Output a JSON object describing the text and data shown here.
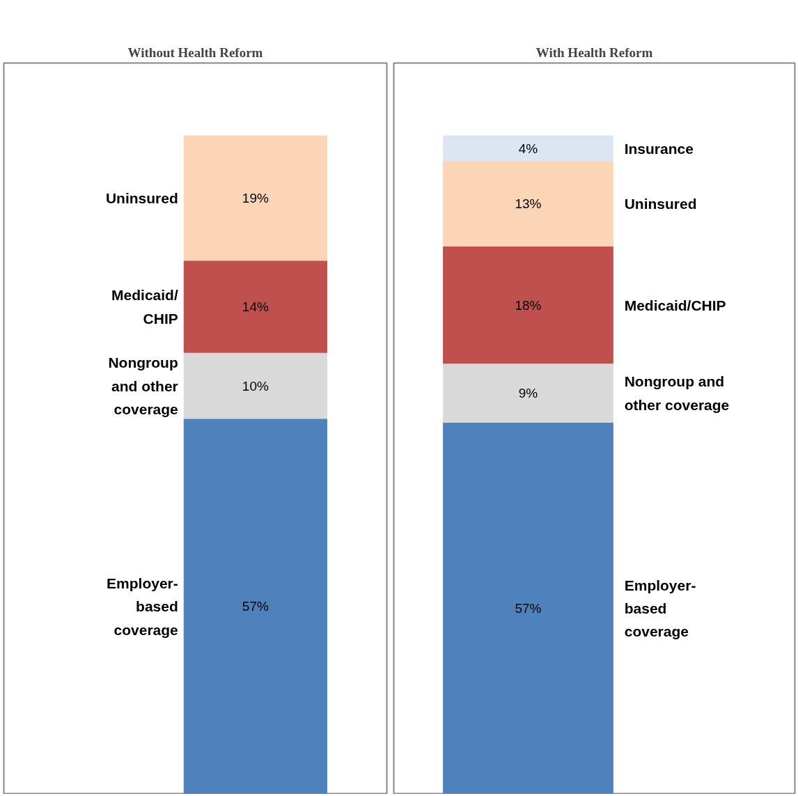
{
  "chart_data": [
    {
      "type": "bar",
      "stacked": true,
      "title": "Without Health Reform",
      "categories": [
        null
      ],
      "series": [
        {
          "name": "Employer-\nbased\ncoverage",
          "color": "#4f81bd",
          "values": [
            57
          ],
          "value_labels": [
            "57%"
          ]
        },
        {
          "name": "Nongroup\nand other\ncoverage",
          "color": "#d9d9d9",
          "values": [
            10
          ],
          "value_labels": [
            "10%"
          ]
        },
        {
          "name": "Medicaid/\nCHIP",
          "color": "#c0504d",
          "values": [
            14
          ],
          "value_labels": [
            "14%"
          ]
        },
        {
          "name": "Uninsured",
          "color": "#fbd5b5",
          "values": [
            19
          ],
          "value_labels": [
            "19%"
          ]
        }
      ],
      "grid": false
    },
    {
      "type": "bar",
      "stacked": true,
      "title": "With Health Reform",
      "categories": [
        null
      ],
      "series": [
        {
          "name": "Employer-\nbased\ncoverage",
          "color": "#4f81bd",
          "values": [
            57
          ],
          "value_labels": [
            "57%"
          ]
        },
        {
          "name": "Nongroup and\nother coverage",
          "color": "#d9d9d9",
          "values": [
            9
          ],
          "value_labels": [
            "9%"
          ]
        },
        {
          "name": "Medicaid/CHIP",
          "color": "#c0504d",
          "values": [
            18
          ],
          "value_labels": [
            "18%"
          ]
        },
        {
          "name": "Uninsured",
          "color": "#fbd5b5",
          "values": [
            13
          ],
          "value_labels": [
            "13%"
          ]
        },
        {
          "name": "Insurance",
          "color": "#dce6f2",
          "values": [
            4
          ],
          "value_labels": [
            "4%"
          ]
        }
      ],
      "grid": false
    }
  ]
}
